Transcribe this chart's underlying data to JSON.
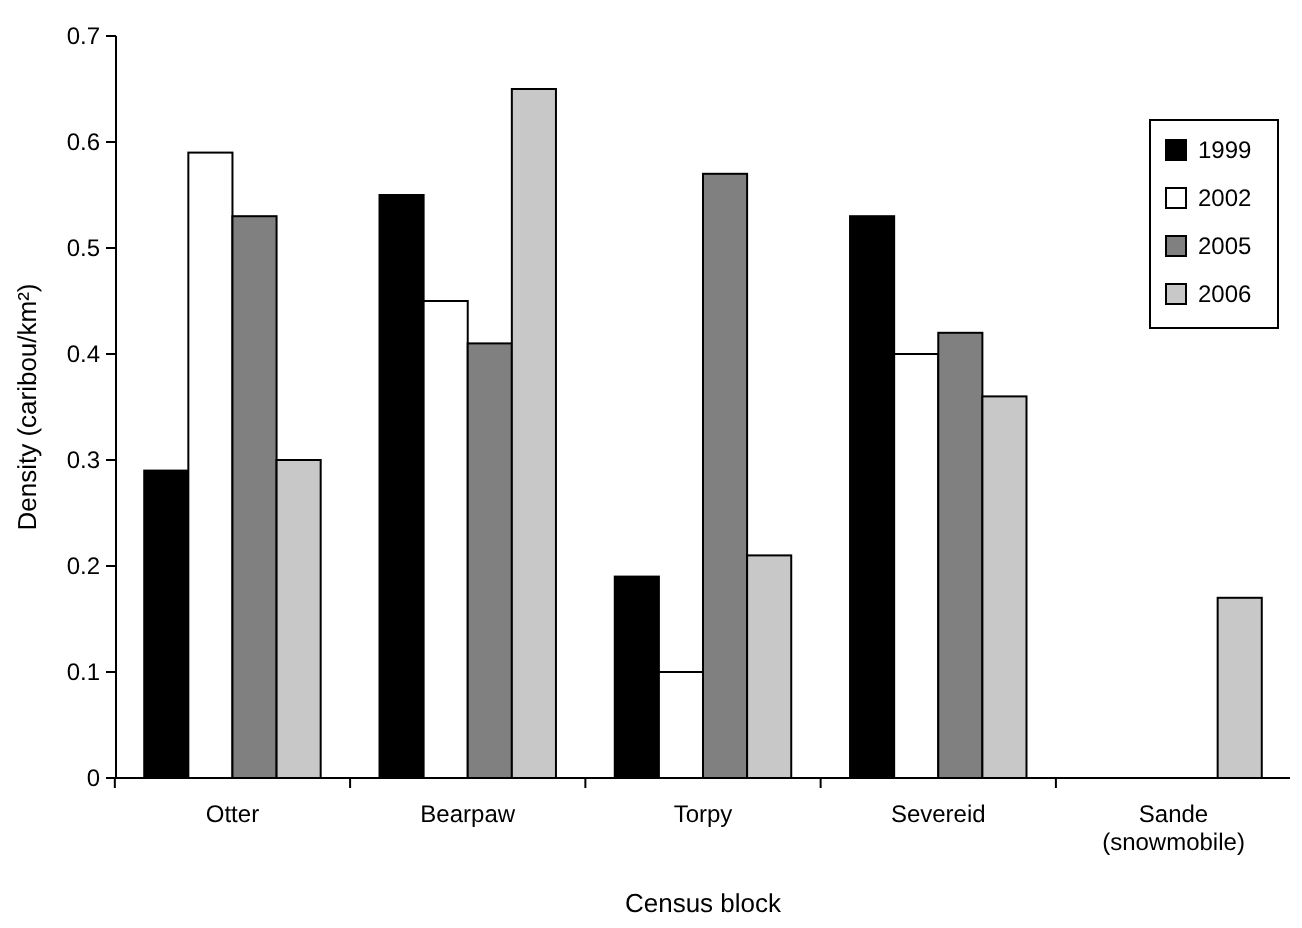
{
  "chart_data": {
    "type": "bar",
    "xlabel": "Census block",
    "ylabel": "Density (caribou/km²)",
    "categories": [
      "Otter",
      "Bearpaw",
      "Torpy",
      "Severeid",
      "Sande (snowmobile)"
    ],
    "series": [
      {
        "name": "1999",
        "color": "#000000",
        "values": [
          0.29,
          0.55,
          0.19,
          0.53,
          null
        ]
      },
      {
        "name": "2002",
        "color": "#ffffff",
        "values": [
          0.59,
          0.45,
          0.1,
          0.4,
          null
        ]
      },
      {
        "name": "2005",
        "color": "#808080",
        "values": [
          0.53,
          0.41,
          0.57,
          0.42,
          null
        ]
      },
      {
        "name": "2006",
        "color": "#c8c8c8",
        "values": [
          0.3,
          0.65,
          0.21,
          0.36,
          0.17
        ]
      }
    ],
    "ylim": [
      0,
      0.7
    ],
    "yticks": [
      0,
      0.1,
      0.2,
      0.3,
      0.4,
      0.5,
      0.6,
      0.7
    ],
    "grid": false,
    "legend": "top right"
  }
}
